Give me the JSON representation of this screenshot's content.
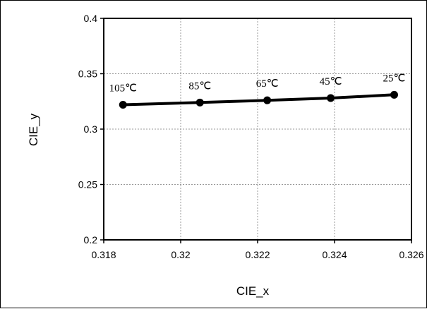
{
  "chart_data": {
    "type": "line",
    "title": "",
    "xlabel": "CIE_x",
    "ylabel": "CIE_y",
    "xlim": [
      0.318,
      0.326
    ],
    "ylim": [
      0.2,
      0.4
    ],
    "xticks": [
      "0.318",
      "0.32",
      "0.322",
      "0.324",
      "0.326"
    ],
    "yticks": [
      "0.2",
      "0.25",
      "0.3",
      "0.35",
      "0.4"
    ],
    "grid": true,
    "legend": "none",
    "series": [
      {
        "color": "#000000",
        "points": [
          {
            "x": 0.3185,
            "y": 0.322,
            "label": "105℃"
          },
          {
            "x": 0.3205,
            "y": 0.324,
            "label": "85℃"
          },
          {
            "x": 0.32225,
            "y": 0.326,
            "label": "65℃"
          },
          {
            "x": 0.3239,
            "y": 0.328,
            "label": "45℃"
          },
          {
            "x": 0.32555,
            "y": 0.331,
            "label": "25℃"
          }
        ]
      }
    ]
  }
}
